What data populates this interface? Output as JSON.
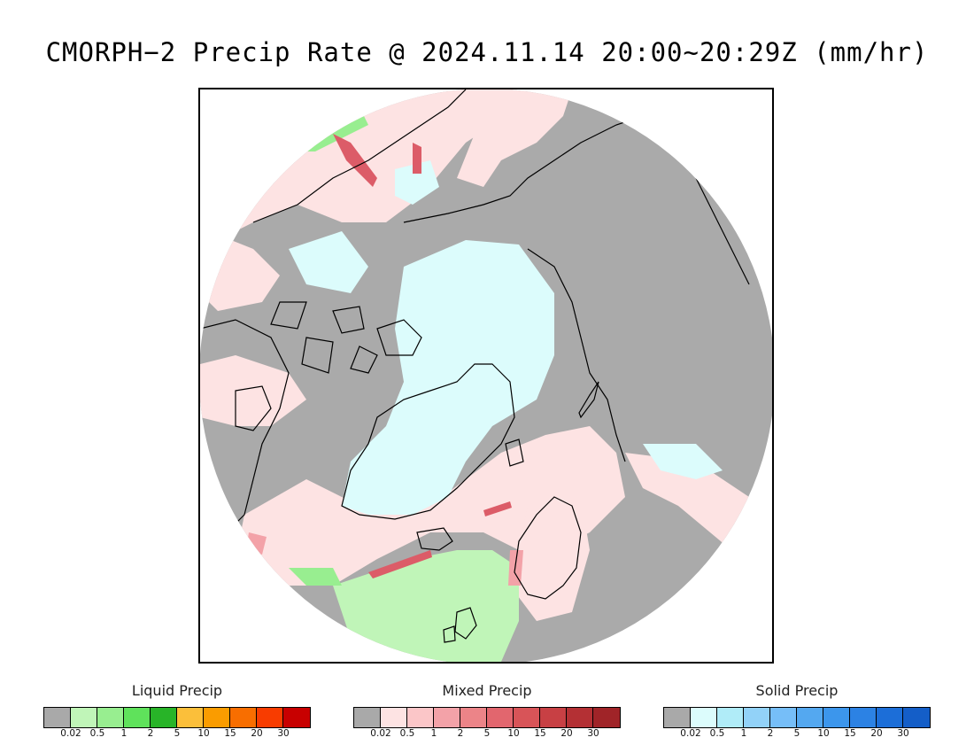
{
  "title": "CMORPH−2 Precip Rate @ 2024.11.14 20:00~20:29Z (mm/hr)",
  "map": {
    "projection": "north-polar-stereographic",
    "colors": {
      "no_precip": "#aaaaaa",
      "liquid_light": "#c0f5b8",
      "liquid_mid": "#98ee90",
      "mixed_light": "#fde3e3",
      "mixed_mid": "#f3a2a8",
      "mixed_strong": "#dc5c68",
      "solid_light": "#dcfcfc",
      "coastline": "#000000",
      "frame": "#000000"
    }
  },
  "legends": [
    {
      "title": "Liquid Precip",
      "colors": [
        "#a9a9a9",
        "#c0f5b8",
        "#98ee90",
        "#5fe25b",
        "#28b428",
        "#fbbf3a",
        "#fa9c00",
        "#f86e00",
        "#f83c00",
        "#c80000"
      ],
      "ticks": [
        "0.02",
        "0.5",
        "1",
        "2",
        "5",
        "10",
        "15",
        "20",
        "30"
      ]
    },
    {
      "title": "Mixed Precip",
      "colors": [
        "#a9a9a9",
        "#fde3e3",
        "#fbc6c8",
        "#f3a2a8",
        "#ec8488",
        "#e2666e",
        "#d85458",
        "#c84044",
        "#b43034",
        "#a02428"
      ],
      "ticks": [
        "0.02",
        "0.5",
        "1",
        "2",
        "5",
        "10",
        "15",
        "20",
        "30"
      ]
    },
    {
      "title": "Solid Precip",
      "colors": [
        "#a9a9a9",
        "#dcfcfc",
        "#b0ecf8",
        "#92d2f8",
        "#76bef8",
        "#54a8f0",
        "#3c96ec",
        "#2c82e4",
        "#1c6ed8",
        "#145ec8"
      ],
      "ticks": [
        "0.02",
        "0.5",
        "1",
        "2",
        "5",
        "10",
        "15",
        "20",
        "30"
      ]
    }
  ]
}
